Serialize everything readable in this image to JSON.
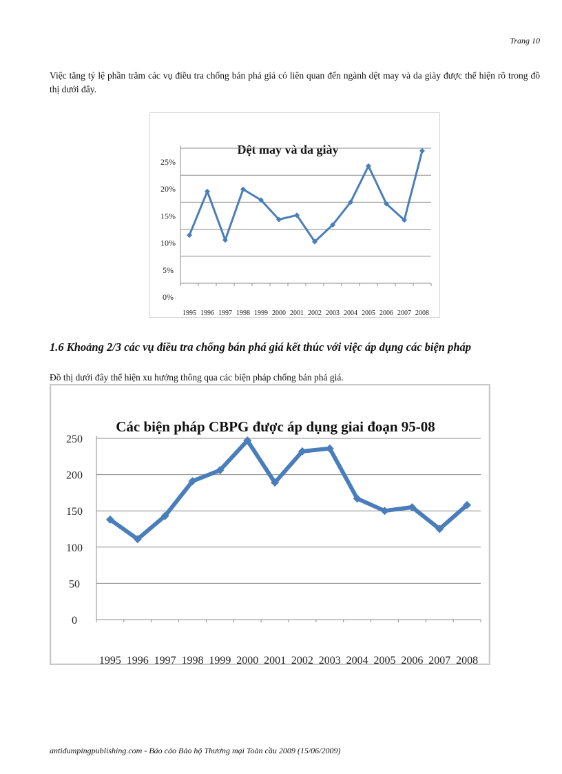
{
  "page": {
    "number": "Trang 10",
    "intro": "Việc tăng tỷ lệ phần trăm các vụ điều tra chống bán phá giá có liên quan đến ngành dệt may và da giày được thể hiện rõ trong đồ thị dưới đây.",
    "section_heading": "1.6  Khoảng 2/3 các vụ điều tra chống bán phá giá kết thúc với việc áp dụng các biện pháp",
    "section_intro": "Đồ thị dưới đây thể hiện xu hướng thông qua các biện pháp chống bán phá giá.",
    "footer": "antidumpingpublishing.com - Báo cáo Bảo hộ Thương mại Toàn cầu 2009 (15/06/2009)"
  },
  "colors": {
    "series": "#4a7ebb",
    "grid": "#8c8c8c",
    "axis": "#8c8c8c"
  },
  "chart_data": [
    {
      "type": "line",
      "title": "Dệt may và da giày",
      "xlabel": "",
      "ylabel": "",
      "categories": [
        "1995",
        "1996",
        "1997",
        "1998",
        "1999",
        "2000",
        "2001",
        "2002",
        "2003",
        "2004",
        "2005",
        "2006",
        "2007",
        "2008"
      ],
      "series": [
        {
          "name": "Dệt may và da giày",
          "values": [
            0.089,
            0.17,
            0.08,
            0.174,
            0.154,
            0.118,
            0.126,
            0.077,
            0.108,
            0.15,
            0.217,
            0.147,
            0.117,
            0.245
          ]
        }
      ],
      "yticks": [
        "0%",
        "5%",
        "10%",
        "15%",
        "20%",
        "25%"
      ],
      "ylim": [
        0,
        0.25
      ],
      "grid": true,
      "legend": "none"
    },
    {
      "type": "line",
      "title": "Các biện pháp CBPG được áp dụng giai đoạn 95-08",
      "xlabel": "",
      "ylabel": "",
      "categories": [
        "1995",
        "1996",
        "1997",
        "1998",
        "1999",
        "2000",
        "2001",
        "2002",
        "2003",
        "2004",
        "2005",
        "2006",
        "2007",
        "2008"
      ],
      "series": [
        {
          "name": "Các biện pháp CBPG",
          "values": [
            138,
            111,
            143,
            191,
            206,
            247,
            189,
            232,
            236,
            167,
            150,
            155,
            125,
            158
          ]
        }
      ],
      "yticks": [
        "0",
        "50",
        "100",
        "150",
        "200",
        "250"
      ],
      "ylim": [
        0,
        250
      ],
      "grid": true,
      "legend": "none"
    }
  ]
}
